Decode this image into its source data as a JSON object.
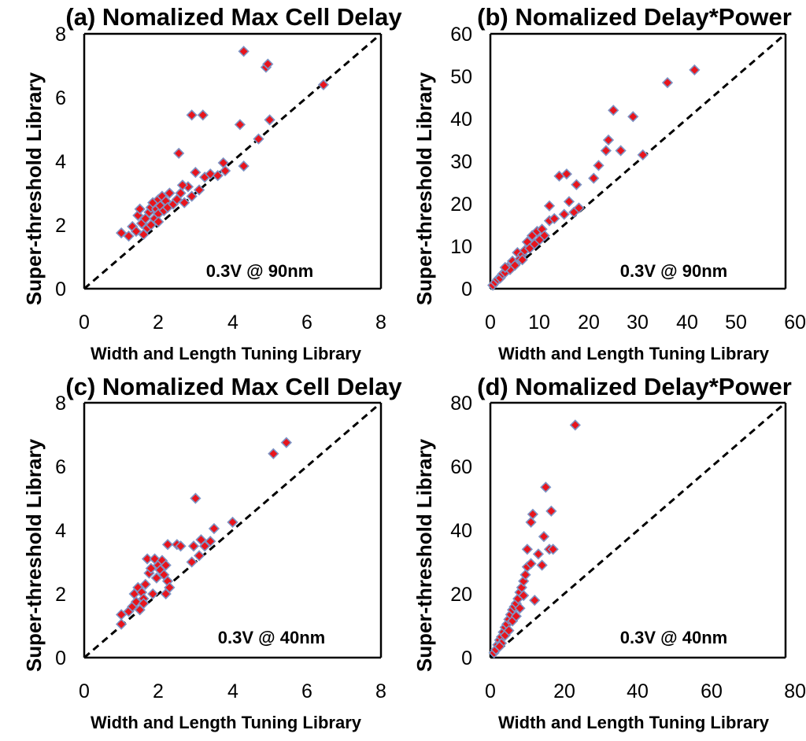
{
  "chart_data": [
    {
      "type": "scatter",
      "title": "(a) Nomalized Max Cell Delay",
      "xlabel": "Width and Length Tuning Library",
      "ylabel": "Super-threshold Library",
      "xlim": [
        0,
        8
      ],
      "ylim": [
        0,
        8
      ],
      "xticks": [
        "0",
        "2",
        "4",
        "6",
        "8"
      ],
      "yticks": [
        "0",
        "2",
        "4",
        "6",
        "8"
      ],
      "annotation": "0.3V @ 90nm",
      "reference_line": "y = x",
      "points": [
        [
          1.0,
          1.75
        ],
        [
          1.2,
          1.65
        ],
        [
          1.3,
          1.95
        ],
        [
          1.4,
          1.8
        ],
        [
          1.45,
          2.3
        ],
        [
          1.5,
          2.5
        ],
        [
          1.55,
          2.05
        ],
        [
          1.6,
          1.7
        ],
        [
          1.65,
          2.2
        ],
        [
          1.7,
          1.9
        ],
        [
          1.75,
          2.4
        ],
        [
          1.8,
          2.55
        ],
        [
          1.8,
          2.0
        ],
        [
          1.85,
          2.7
        ],
        [
          1.9,
          2.2
        ],
        [
          1.95,
          2.5
        ],
        [
          2.0,
          2.8
        ],
        [
          2.0,
          2.35
        ],
        [
          2.05,
          2.6
        ],
        [
          2.1,
          2.9
        ],
        [
          2.15,
          2.45
        ],
        [
          2.2,
          2.75
        ],
        [
          2.25,
          2.55
        ],
        [
          2.3,
          3.0
        ],
        [
          2.4,
          2.65
        ],
        [
          2.5,
          2.8
        ],
        [
          2.6,
          3.0
        ],
        [
          2.7,
          2.7
        ],
        [
          2.8,
          3.2
        ],
        [
          2.9,
          2.9
        ],
        [
          2.55,
          4.25
        ],
        [
          2.65,
          3.25
        ],
        [
          2.9,
          5.45
        ],
        [
          3.0,
          3.65
        ],
        [
          3.1,
          3.1
        ],
        [
          3.2,
          5.45
        ],
        [
          3.25,
          3.5
        ],
        [
          3.4,
          3.6
        ],
        [
          3.6,
          3.55
        ],
        [
          3.75,
          3.95
        ],
        [
          3.8,
          3.7
        ],
        [
          4.2,
          5.15
        ],
        [
          4.3,
          3.85
        ],
        [
          4.3,
          7.45
        ],
        [
          4.7,
          4.7
        ],
        [
          4.9,
          6.95
        ],
        [
          4.95,
          7.05
        ],
        [
          5.0,
          5.3
        ],
        [
          6.45,
          6.4
        ],
        [
          2.0,
          2.1
        ]
      ]
    },
    {
      "type": "scatter",
      "title": "(b) Nomalized Delay*Power",
      "xlabel": "Width and Length Tuning Library",
      "ylabel": "Super-threshold Library",
      "xlim": [
        0,
        60
      ],
      "ylim": [
        0,
        60
      ],
      "xticks": [
        "0",
        "10",
        "20",
        "30",
        "40",
        "50",
        "60"
      ],
      "yticks": [
        "0",
        "10",
        "20",
        "30",
        "40",
        "50",
        "60"
      ],
      "annotation": "0.3V @ 90nm",
      "reference_line": "y = x",
      "points": [
        [
          0.5,
          0.8
        ],
        [
          1.0,
          1.5
        ],
        [
          1.5,
          2.2
        ],
        [
          2.0,
          2.5
        ],
        [
          2.5,
          3.5
        ],
        [
          3.0,
          3.8
        ],
        [
          3.5,
          5.0
        ],
        [
          4.0,
          4.5
        ],
        [
          4.5,
          6.5
        ],
        [
          5.0,
          5.5
        ],
        [
          5.5,
          8.5
        ],
        [
          6.0,
          7.0
        ],
        [
          6.5,
          8.0
        ],
        [
          7.0,
          9.0
        ],
        [
          7.5,
          11.0
        ],
        [
          8.0,
          9.5
        ],
        [
          8.5,
          12.5
        ],
        [
          9.0,
          10.5
        ],
        [
          9.5,
          13.5
        ],
        [
          10.0,
          11.5
        ],
        [
          10.5,
          14.0
        ],
        [
          11.0,
          12.5
        ],
        [
          12.0,
          16.0
        ],
        [
          12.0,
          19.5
        ],
        [
          13.0,
          16.5
        ],
        [
          14.0,
          26.5
        ],
        [
          15.0,
          17.5
        ],
        [
          15.5,
          27.0
        ],
        [
          16.0,
          20.5
        ],
        [
          17.0,
          18.0
        ],
        [
          17.5,
          24.5
        ],
        [
          18.0,
          19.0
        ],
        [
          21.0,
          26.0
        ],
        [
          22.0,
          29.0
        ],
        [
          23.5,
          32.5
        ],
        [
          24.0,
          35.0
        ],
        [
          25.0,
          42.0
        ],
        [
          26.5,
          32.5
        ],
        [
          29.0,
          40.5
        ],
        [
          31.0,
          31.5
        ],
        [
          36.0,
          48.5
        ],
        [
          41.5,
          51.5
        ],
        [
          3.0,
          5.0
        ],
        [
          6.5,
          6.8
        ]
      ]
    },
    {
      "type": "scatter",
      "title": "(c) Nomalized Max Cell Delay",
      "xlabel": "Width and Length Tuning Library",
      "ylabel": "Super-threshold Library",
      "xlim": [
        0,
        8
      ],
      "ylim": [
        0,
        8
      ],
      "xticks": [
        "0",
        "2",
        "4",
        "6",
        "8"
      ],
      "yticks": [
        "0",
        "2",
        "4",
        "6",
        "8"
      ],
      "annotation": "0.3V @ 40nm",
      "reference_line": "y = x",
      "points": [
        [
          1.0,
          1.05
        ],
        [
          1.0,
          1.35
        ],
        [
          1.2,
          1.45
        ],
        [
          1.3,
          1.6
        ],
        [
          1.35,
          2.0
        ],
        [
          1.4,
          1.75
        ],
        [
          1.45,
          2.2
        ],
        [
          1.5,
          1.5
        ],
        [
          1.55,
          2.05
        ],
        [
          1.6,
          1.85
        ],
        [
          1.65,
          2.3
        ],
        [
          1.7,
          3.1
        ],
        [
          1.75,
          2.65
        ],
        [
          1.8,
          2.8
        ],
        [
          1.85,
          2.0
        ],
        [
          1.9,
          3.1
        ],
        [
          1.95,
          2.5
        ],
        [
          2.0,
          2.9
        ],
        [
          2.05,
          2.75
        ],
        [
          2.1,
          3.05
        ],
        [
          2.15,
          2.6
        ],
        [
          2.2,
          2.9
        ],
        [
          2.25,
          2.4
        ],
        [
          2.3,
          2.2
        ],
        [
          2.2,
          2.0
        ],
        [
          2.25,
          3.55
        ],
        [
          2.5,
          3.55
        ],
        [
          2.6,
          3.5
        ],
        [
          2.9,
          3.0
        ],
        [
          2.95,
          3.5
        ],
        [
          3.0,
          5.0
        ],
        [
          3.1,
          3.2
        ],
        [
          3.15,
          3.7
        ],
        [
          3.25,
          3.5
        ],
        [
          3.4,
          3.65
        ],
        [
          3.5,
          4.05
        ],
        [
          4.0,
          4.25
        ],
        [
          5.1,
          6.4
        ],
        [
          5.45,
          6.75
        ],
        [
          1.6,
          1.7
        ]
      ]
    },
    {
      "type": "scatter",
      "title": "(d) Nomalized Delay*Power",
      "xlabel": "Width and Length Tuning Library",
      "ylabel": "Super-threshold Library",
      "xlim": [
        0,
        80
      ],
      "ylim": [
        0,
        80
      ],
      "xticks": [
        "0",
        "20",
        "40",
        "60",
        "80"
      ],
      "yticks": [
        "0",
        "20",
        "40",
        "60",
        "80"
      ],
      "annotation": "0.3V @ 40nm",
      "reference_line": "y = x",
      "points": [
        [
          1.0,
          1.5
        ],
        [
          1.5,
          2.5
        ],
        [
          2.0,
          4.0
        ],
        [
          2.5,
          5.5
        ],
        [
          3.0,
          6.5
        ],
        [
          3.5,
          8.0
        ],
        [
          4.0,
          9.5
        ],
        [
          4.5,
          10.5
        ],
        [
          5.0,
          12.0
        ],
        [
          5.5,
          13.5
        ],
        [
          6.0,
          15.0
        ],
        [
          6.5,
          16.0
        ],
        [
          7.0,
          17.0
        ],
        [
          7.5,
          18.5
        ],
        [
          8.0,
          20.5
        ],
        [
          8.5,
          22.0
        ],
        [
          9.0,
          24.0
        ],
        [
          9.5,
          26.0
        ],
        [
          10.0,
          28.5
        ],
        [
          10.0,
          34.0
        ],
        [
          11.0,
          29.5
        ],
        [
          11.0,
          42.5
        ],
        [
          11.5,
          45.0
        ],
        [
          12.0,
          18.0
        ],
        [
          13.0,
          32.5
        ],
        [
          14.0,
          29.0
        ],
        [
          14.5,
          38.0
        ],
        [
          15.0,
          53.5
        ],
        [
          16.0,
          34.0
        ],
        [
          16.5,
          46.0
        ],
        [
          17.0,
          34.0
        ],
        [
          23.0,
          73.0
        ],
        [
          3.0,
          4.5
        ],
        [
          4.0,
          7.0
        ],
        [
          5.0,
          8.5
        ],
        [
          6.0,
          11.5
        ],
        [
          7.0,
          13.0
        ],
        [
          8.0,
          15.5
        ],
        [
          9.0,
          19.5
        ],
        [
          2.5,
          3.5
        ]
      ]
    }
  ]
}
